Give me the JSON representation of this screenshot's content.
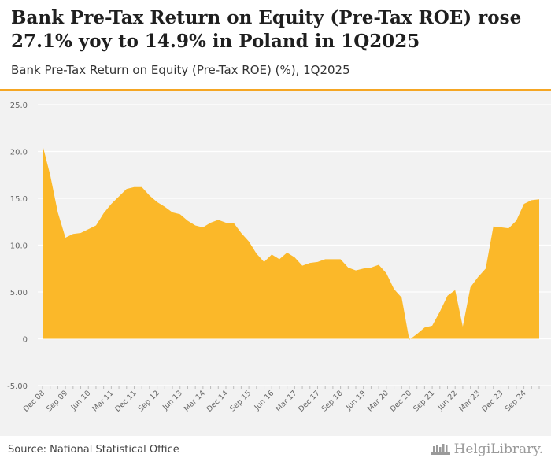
{
  "header": {
    "title": "Bank Pre-Tax Return on Equity (Pre-Tax ROE) rose 27.1% yoy to 14.9% in Poland in 1Q2025",
    "subtitle": "Bank Pre-Tax Return on Equity (Pre-Tax ROE) (%), 1Q2025"
  },
  "footer": {
    "source": "Source: National Statistical Office",
    "brand": "HelgiLibrary."
  },
  "colors": {
    "accent": "#f5a623",
    "fill": "#fbb829",
    "grid": "#ffffff",
    "background": "#f2f2f2"
  },
  "chart_data": {
    "type": "area",
    "title": "Bank Pre-Tax Return on Equity (Pre-Tax ROE) (%), 1Q2025",
    "ylabel": "%",
    "ylim": [
      -5,
      25
    ],
    "yticks": [
      "-5.00",
      "0",
      "5.00",
      "10.0",
      "15.0",
      "20.0",
      "25.0"
    ],
    "ytick_values": [
      -5,
      0,
      5,
      10,
      15,
      20,
      25
    ],
    "x_tick_labels": [
      "Dec 08",
      "Sep 09",
      "Jun 10",
      "Mar 11",
      "Dec 11",
      "Sep 12",
      "Jun 13",
      "Mar 14",
      "Dec 14",
      "Sep 15",
      "Jun 16",
      "Mar 17",
      "Dec 17",
      "Sep 18",
      "Jun 19",
      "Mar 20",
      "Dec 20",
      "Sep 21",
      "Jun 22",
      "Mar 23",
      "Dec 23",
      "Sep 24"
    ],
    "x_tick_quarter_index": [
      0,
      3,
      6,
      9,
      12,
      15,
      18,
      21,
      24,
      27,
      30,
      33,
      36,
      39,
      42,
      45,
      48,
      51,
      54,
      57,
      60,
      63
    ],
    "series": [
      {
        "name": "Bank Pre-Tax ROE (%)",
        "start": "4Q2008",
        "end": "1Q2025",
        "values": [
          20.7,
          17.5,
          13.5,
          10.8,
          11.2,
          11.3,
          11.7,
          12.1,
          13.4,
          14.4,
          15.2,
          16.0,
          16.2,
          16.2,
          15.3,
          14.6,
          14.1,
          13.5,
          13.3,
          12.6,
          12.1,
          11.9,
          12.4,
          12.7,
          12.4,
          12.4,
          11.3,
          10.4,
          9.1,
          8.2,
          9.0,
          8.5,
          9.2,
          8.7,
          7.8,
          8.1,
          8.2,
          8.5,
          8.5,
          8.5,
          7.6,
          7.3,
          7.5,
          7.6,
          7.9,
          7.0,
          5.3,
          4.4,
          -0.1,
          0.5,
          1.2,
          1.4,
          2.9,
          4.6,
          5.2,
          1.3,
          5.5,
          6.6,
          7.5,
          12.0,
          11.9,
          11.8,
          12.6,
          14.4,
          14.8,
          14.9
        ]
      }
    ]
  }
}
